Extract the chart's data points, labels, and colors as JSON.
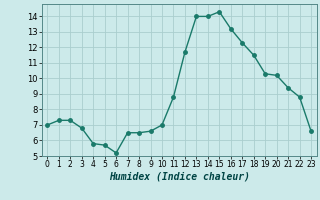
{
  "x": [
    0,
    1,
    2,
    3,
    4,
    5,
    6,
    7,
    8,
    9,
    10,
    11,
    12,
    13,
    14,
    15,
    16,
    17,
    18,
    19,
    20,
    21,
    22,
    23
  ],
  "y": [
    7.0,
    7.3,
    7.3,
    6.8,
    5.8,
    5.7,
    5.2,
    6.5,
    6.5,
    6.6,
    7.0,
    8.8,
    11.7,
    14.0,
    14.0,
    14.3,
    13.2,
    12.3,
    11.5,
    10.3,
    10.2,
    9.4,
    8.8,
    6.6
  ],
  "xlim": [
    -0.5,
    23.5
  ],
  "ylim": [
    5,
    14.8
  ],
  "yticks": [
    5,
    6,
    7,
    8,
    9,
    10,
    11,
    12,
    13,
    14
  ],
  "xticks": [
    0,
    1,
    2,
    3,
    4,
    5,
    6,
    7,
    8,
    9,
    10,
    11,
    12,
    13,
    14,
    15,
    16,
    17,
    18,
    19,
    20,
    21,
    22,
    23
  ],
  "xlabel": "Humidex (Indice chaleur)",
  "line_color": "#1a7a6a",
  "marker_color": "#1a7a6a",
  "bg_color": "#cceaea",
  "grid_color": "#aacece"
}
